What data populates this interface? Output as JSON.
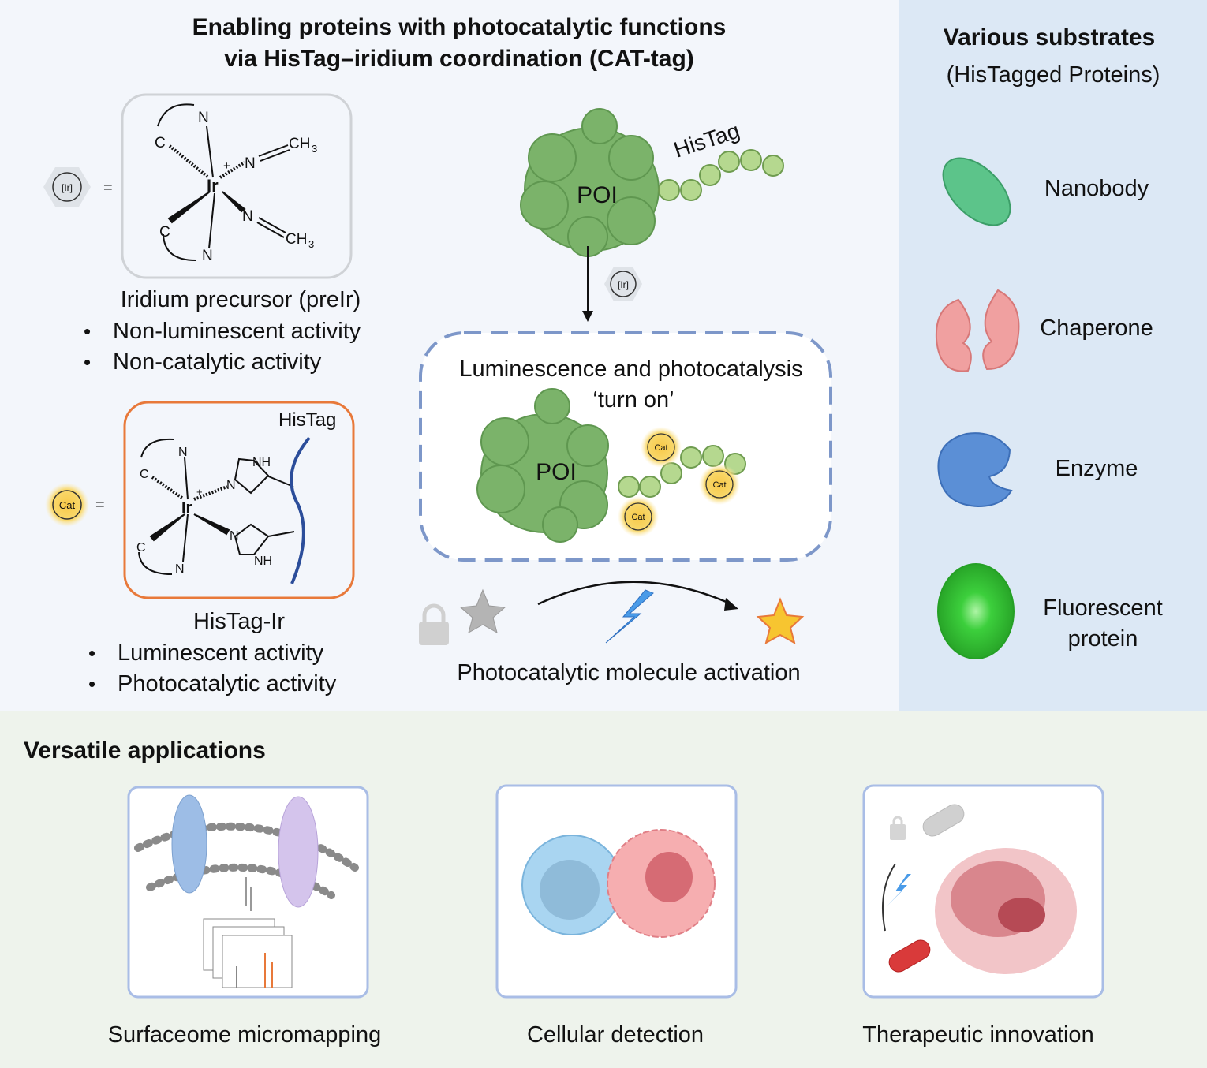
{
  "title": {
    "line1": "Enabling proteins with photocatalytic functions",
    "line2": "via HisTag–iridium coordination (CAT-tag)"
  },
  "precursor": {
    "icon_label": "[Ir]",
    "equals": "=",
    "atoms": {
      "n": "N",
      "c": "C",
      "ir": "Ir",
      "plus": "+",
      "ch3": "CH",
      "sub3": "3"
    },
    "name": "Iridium precursor (preIr)",
    "bullets": [
      "Non-luminescent activity",
      "Non-catalytic activity"
    ]
  },
  "histag_ir": {
    "icon_label": "Cat",
    "equals": "=",
    "histag_label": "HisTag",
    "atoms": {
      "n": "N",
      "c": "C",
      "ir": "Ir",
      "plus": "+",
      "nh": "NH"
    },
    "name": "HisTag-Ir",
    "bullets": [
      "Luminescent activity",
      "Photocatalytic activity"
    ]
  },
  "center": {
    "poi_label": "POI",
    "histag_label": "HisTag",
    "ir_badge": "[Ir]",
    "turn_on_line1": "Luminescence and photocatalysis",
    "turn_on_line2": "‘turn on’",
    "cat_badge": "Cat",
    "activation_label": "Photocatalytic molecule activation"
  },
  "substrates": {
    "title": "Various substrates",
    "subtitle": "(HisTagged Proteins)",
    "items": [
      {
        "label": "Nanobody",
        "color": "#5cc48a"
      },
      {
        "label": "Chaperone",
        "color": "#f0a0a0"
      },
      {
        "label": "Enzyme",
        "color": "#5b8fd6"
      },
      {
        "label": "Fluorescent",
        "label2": "protein",
        "color": "#3ccf3c"
      }
    ]
  },
  "applications": {
    "title": "Versatile applications",
    "items": [
      {
        "label": "Surfaceome micromapping"
      },
      {
        "label": "Cellular detection"
      },
      {
        "label": "Therapeutic innovation"
      }
    ]
  },
  "colors": {
    "poi_green": "#7bb36a",
    "cat_yellow": "#f7c948",
    "orange_frame": "#e8793a",
    "dashed_blue": "#7d97c9",
    "right_panel": "#dce8f5",
    "bottom_panel": "#eef3ec"
  }
}
